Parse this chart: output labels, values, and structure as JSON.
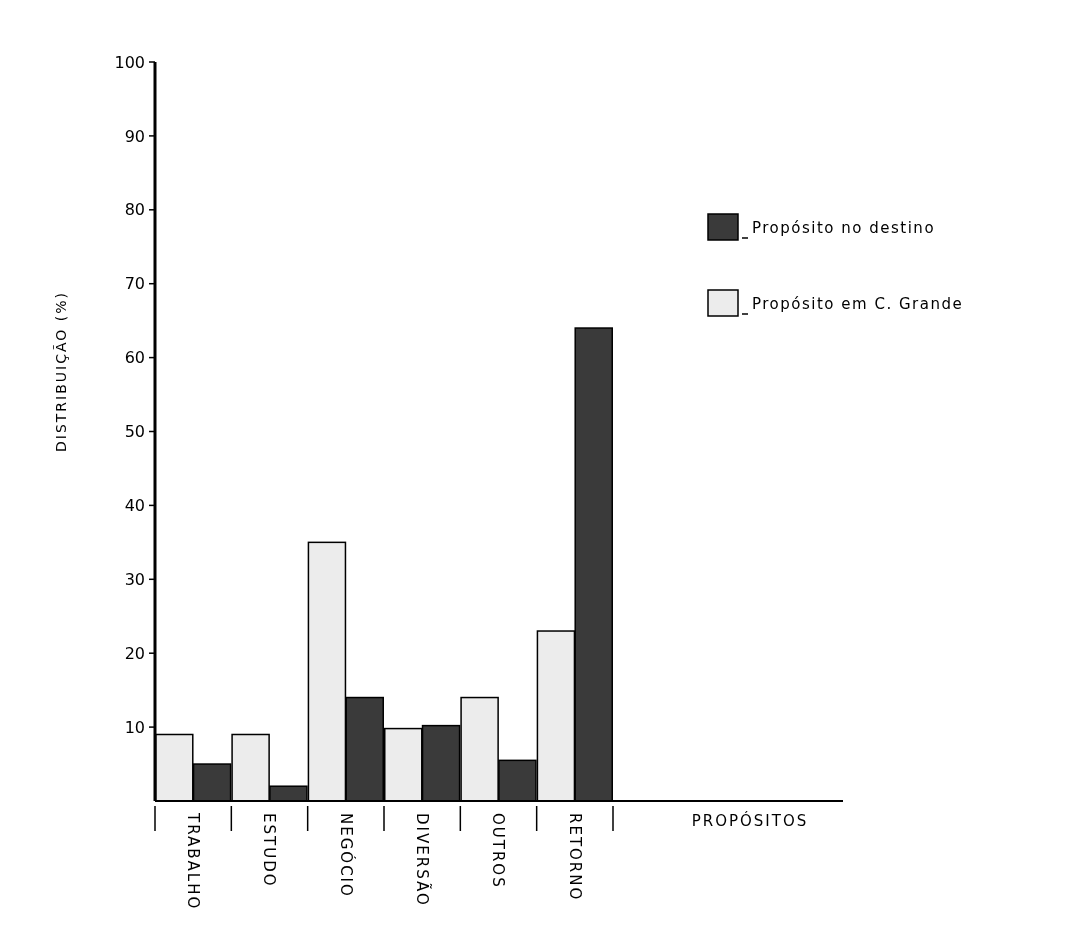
{
  "chart_data": {
    "type": "bar",
    "ylabel": "DISTRIBUIÇÃO (%)",
    "annotations": [
      "PROPÓSITOS"
    ],
    "categories": [
      "TRABALHO",
      "ESTUDO",
      "NEGÓCIO",
      "DIVERSÃO",
      "OUTROS",
      "RETORNO"
    ],
    "series": [
      {
        "name": "Propósito em C. Grande",
        "color": "#ececec",
        "values": [
          9,
          9,
          35,
          9.8,
          14,
          23
        ]
      },
      {
        "name": "Propósito no destino",
        "color": "#3a3a3a",
        "values": [
          5,
          2,
          14,
          10.2,
          5.5,
          64
        ]
      }
    ],
    "ylim": [
      0,
      100
    ],
    "yticks": [
      10,
      20,
      30,
      40,
      50,
      60,
      70,
      80,
      90,
      100
    ],
    "grid": false,
    "legend": "top right"
  }
}
